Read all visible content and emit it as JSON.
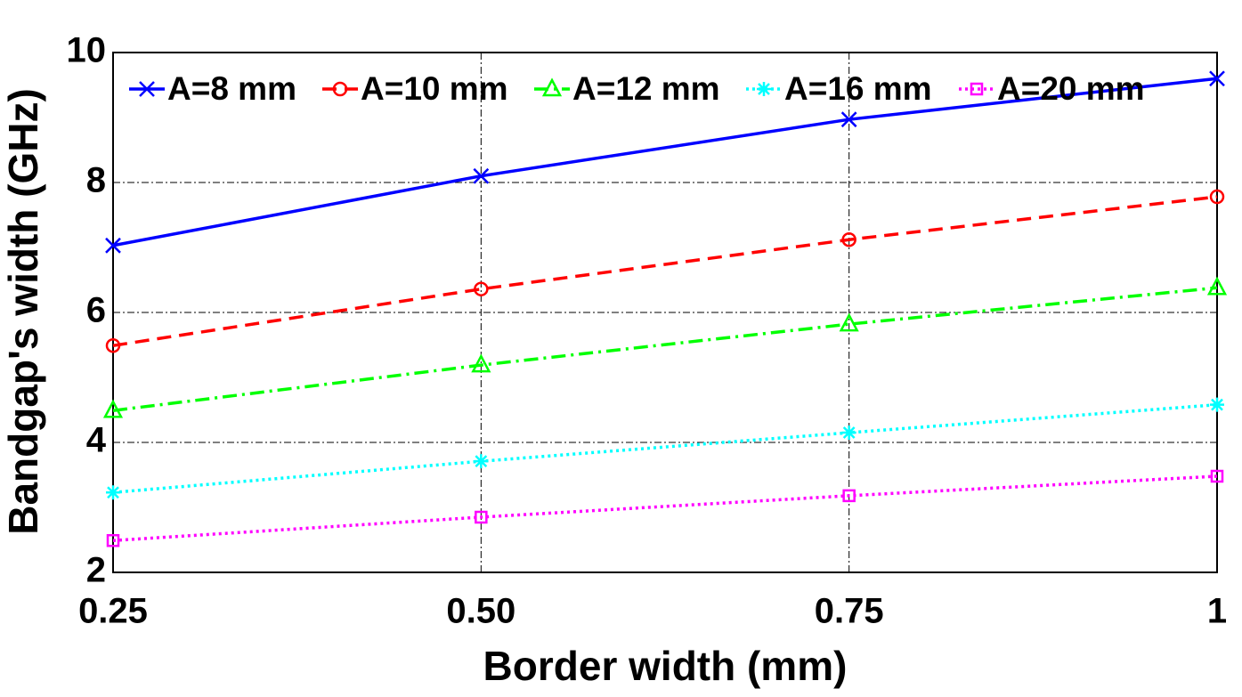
{
  "chart_data": {
    "type": "line",
    "xlabel": "Border width (mm)",
    "ylabel": "Bandgap's width (GHz)",
    "x": [
      0.25,
      0.5,
      0.75,
      1
    ],
    "xlim": [
      0.25,
      1
    ],
    "xticks": [
      0.25,
      {
        "value": 0.5,
        "label": "0.50"
      },
      0.75,
      1
    ],
    "ylim": [
      2,
      10
    ],
    "yticks": [
      2,
      4,
      6,
      8,
      10
    ],
    "grid": true,
    "legend": "top",
    "series": [
      {
        "name": "A=8 mm",
        "color": "#0000ff",
        "marker": "x",
        "linestyle": "solid",
        "values": [
          7.03,
          8.1,
          8.97,
          9.6
        ]
      },
      {
        "name": "A=10 mm",
        "color": "#ff0000",
        "marker": "o",
        "linestyle": "dashed",
        "values": [
          5.49,
          6.36,
          7.12,
          7.78
        ]
      },
      {
        "name": "A=12 mm",
        "color": "#00ff00",
        "marker": "triangle",
        "linestyle": "dashdot",
        "values": [
          4.49,
          5.19,
          5.82,
          6.38
        ]
      },
      {
        "name": "A=16 mm",
        "color": "#00ffff",
        "marker": "star",
        "linestyle": "dotted",
        "values": [
          3.23,
          3.71,
          4.15,
          4.58
        ]
      },
      {
        "name": "A=20 mm",
        "color": "#ff00ff",
        "marker": "square",
        "linestyle": "dotted",
        "values": [
          2.49,
          2.85,
          3.18,
          3.48
        ]
      }
    ]
  }
}
